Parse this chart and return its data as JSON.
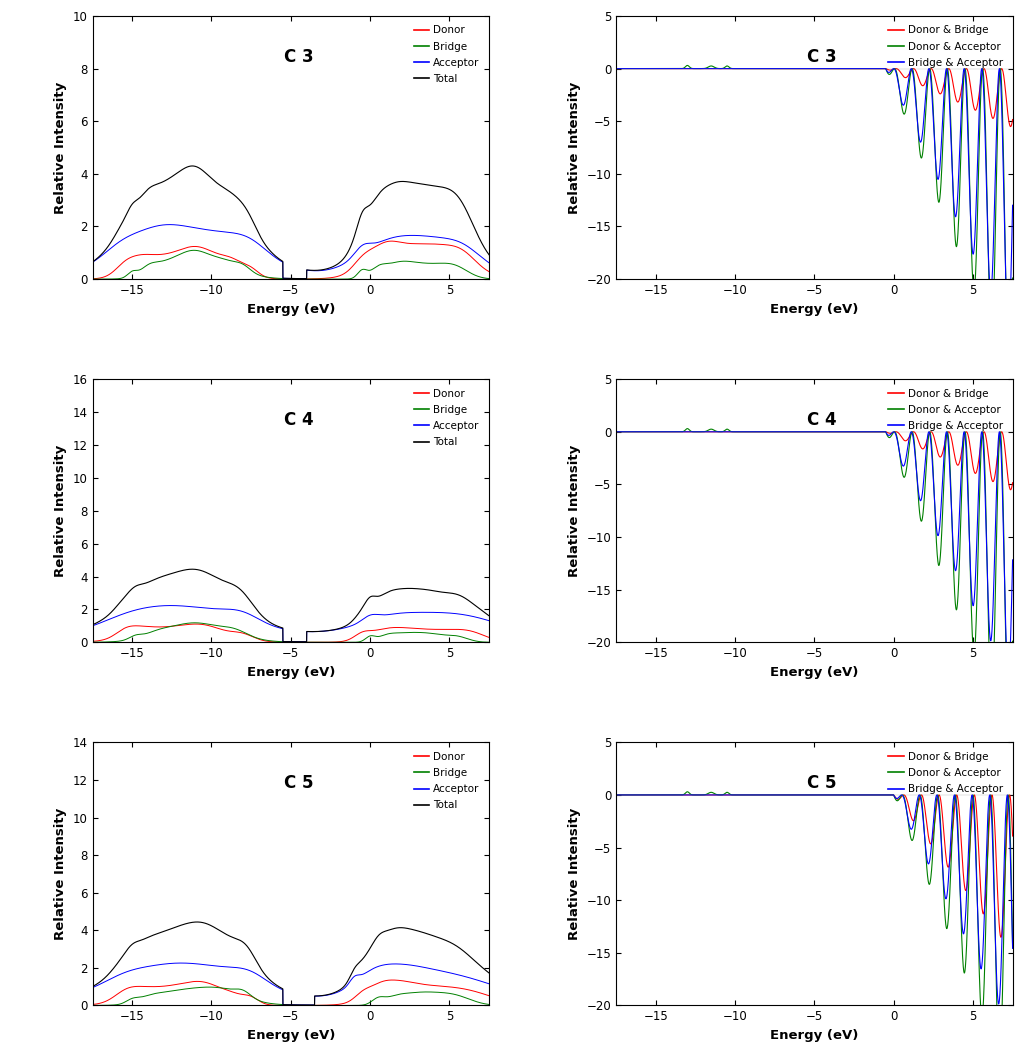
{
  "panels": [
    {
      "title": "C 3",
      "type": "DOS",
      "ylim": [
        0,
        10
      ],
      "yticks": [
        0,
        2,
        4,
        6,
        8,
        10
      ],
      "xlim": [
        -17.5,
        7.5
      ],
      "xticks": [
        -15,
        -10,
        -5,
        0,
        5
      ]
    },
    {
      "title": "C 3",
      "type": "ODOS",
      "ylim": [
        -20,
        5
      ],
      "yticks": [
        -20,
        -15,
        -10,
        -5,
        0,
        5
      ],
      "xlim": [
        -17.5,
        7.5
      ],
      "xticks": [
        -15,
        -10,
        -5,
        0,
        5
      ]
    },
    {
      "title": "C 4",
      "type": "DOS",
      "ylim": [
        0,
        16
      ],
      "yticks": [
        0,
        2,
        4,
        6,
        8,
        10,
        12,
        14,
        16
      ],
      "xlim": [
        -17.5,
        7.5
      ],
      "xticks": [
        -15,
        -10,
        -5,
        0,
        5
      ]
    },
    {
      "title": "C 4",
      "type": "ODOS",
      "ylim": [
        -20,
        5
      ],
      "yticks": [
        -20,
        -15,
        -10,
        -5,
        0,
        5
      ],
      "xlim": [
        -17.5,
        7.5
      ],
      "xticks": [
        -15,
        -10,
        -5,
        0,
        5
      ]
    },
    {
      "title": "C 5",
      "type": "DOS",
      "ylim": [
        0,
        14
      ],
      "yticks": [
        0,
        2,
        4,
        6,
        8,
        10,
        12,
        14
      ],
      "xlim": [
        -17.5,
        7.5
      ],
      "xticks": [
        -15,
        -10,
        -5,
        0,
        5
      ]
    },
    {
      "title": "C 5",
      "type": "ODOS",
      "ylim": [
        -20,
        5
      ],
      "yticks": [
        -20,
        -15,
        -10,
        -5,
        0,
        5
      ],
      "xlim": [
        -17.5,
        7.5
      ],
      "xticks": [
        -15,
        -10,
        -5,
        0,
        5
      ]
    }
  ],
  "dos_legend": [
    "Donor",
    "Bridge",
    "Acceptor",
    "Total"
  ],
  "dos_colors": [
    "#FF0000",
    "#008000",
    "#0000FF",
    "#000000"
  ],
  "odos_legend": [
    "Donor & Bridge",
    "Donor & Acceptor",
    "Bridge & Acceptor"
  ],
  "odos_colors": [
    "#FF0000",
    "#008000",
    "#0000FF"
  ],
  "xlabel": "Energy (eV)",
  "ylabel": "Relative Intensity"
}
